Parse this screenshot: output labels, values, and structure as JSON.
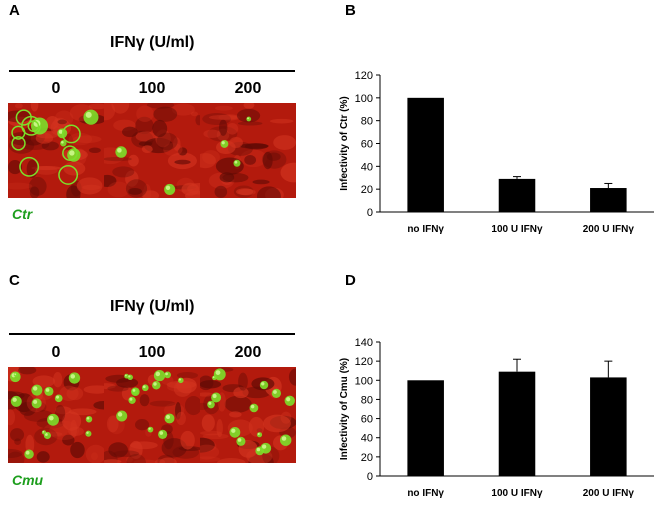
{
  "panels": {
    "A": "A",
    "B": "B",
    "C": "C",
    "D": "D"
  },
  "microscopy": [
    {
      "treatment_label": "IFNγ (U/ml)",
      "doses": [
        "0",
        "100",
        "200"
      ],
      "organism": "Ctr",
      "organism_color": "#1d9e1d",
      "inclusion_density": [
        "high",
        "very low",
        "low"
      ]
    },
    {
      "treatment_label": "IFNγ (U/ml)",
      "doses": [
        "0",
        "100",
        "200"
      ],
      "organism": "Cmu",
      "organism_color": "#1d9e1d",
      "inclusion_density": [
        "high",
        "high",
        "high"
      ]
    }
  ],
  "colors": {
    "cell_background": "#b31a0d",
    "inclusion": "#7be02a",
    "bar": "#000000"
  },
  "chart_data": [
    {
      "type": "bar",
      "panel": "B",
      "categories": [
        "no IFNγ",
        "100 U IFNγ",
        "200 U IFNγ"
      ],
      "values": [
        100,
        29,
        21
      ],
      "errors": [
        0,
        2,
        4
      ],
      "ylabel": "Infectivity of Ctr (%)",
      "ylim": [
        0,
        120
      ],
      "yticks": [
        0,
        20,
        40,
        60,
        80,
        100,
        120
      ],
      "grid": false
    },
    {
      "type": "bar",
      "panel": "D",
      "categories": [
        "no IFNγ",
        "100 U IFNγ",
        "200 U IFNγ"
      ],
      "values": [
        100,
        109,
        103
      ],
      "errors": [
        0,
        13,
        17
      ],
      "ylabel": "Infectivity of Cmu (%)",
      "ylim": [
        0,
        140
      ],
      "yticks": [
        0,
        20,
        40,
        60,
        80,
        100,
        120,
        140
      ],
      "grid": false
    }
  ]
}
